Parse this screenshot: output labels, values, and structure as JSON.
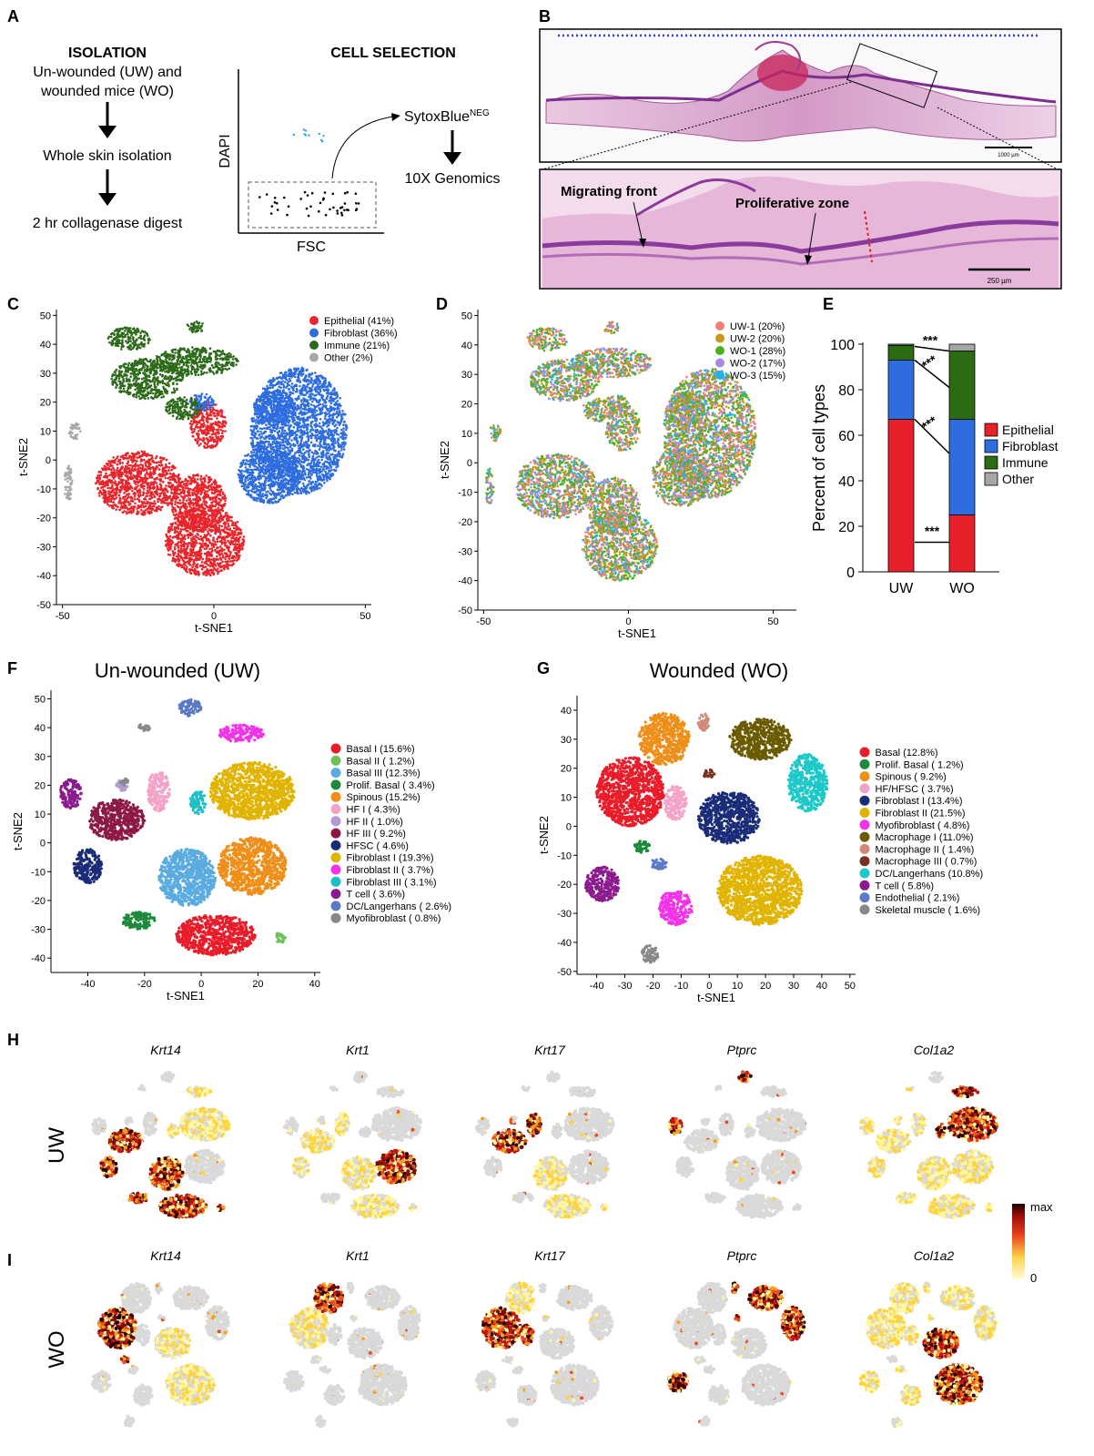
{
  "panelA": {
    "letter": "A",
    "isolation": {
      "heading": "ISOLATION",
      "step1_line1": "Un-wounded (UW) and",
      "step1_line2": "wounded mice (WO)",
      "step2": "Whole skin isolation",
      "step3": "2 hr collagenase digest"
    },
    "selection": {
      "heading": "CELL SELECTION",
      "y_axis": "DAPI",
      "x_axis": "FSC",
      "gate_label": "SytoxBlue",
      "gate_superscript": "NEG",
      "output": "10X Genomics"
    }
  },
  "panelB": {
    "letter": "B",
    "scale_top": "1000 µm",
    "scale_bottom": "250 µm",
    "label_migrating": "Migrating front",
    "label_proliferative": "Proliferative zone"
  },
  "chart_data": [
    {
      "panel": "C",
      "type": "scatter",
      "xlabel": "t-SNE1",
      "ylabel": "t-SNE2",
      "xlim": [
        -52,
        52
      ],
      "ylim": [
        -50,
        52
      ],
      "xticks": [
        -50,
        0,
        50
      ],
      "yticks": [
        50,
        40,
        30,
        20,
        10,
        0,
        -10,
        -20,
        -30,
        -40,
        -50
      ],
      "legend_position": "top-right",
      "series": [
        {
          "name": "Epithelial (41%)",
          "color": "#e8252b",
          "clusters": [
            [
              -25,
              -8,
              14,
              11
            ],
            [
              -3,
              -28,
              13,
              12
            ],
            [
              -2,
              12,
              6,
              8
            ],
            [
              -5,
              -15,
              9,
              10
            ]
          ]
        },
        {
          "name": "Fibroblast (36%)",
          "color": "#2e6ddf",
          "clusters": [
            [
              28,
              10,
              16,
              22
            ],
            [
              20,
              18,
              7,
              6
            ],
            [
              18,
              -5,
              10,
              10
            ],
            [
              -4,
              20,
              4,
              3
            ]
          ]
        },
        {
          "name": "Immune (21%)",
          "color": "#2d6a1a",
          "clusters": [
            [
              -22,
              28,
              12,
              7
            ],
            [
              -6,
              34,
              14,
              5
            ],
            [
              -28,
              42,
              7,
              4
            ],
            [
              -6,
              46,
              3,
              2
            ],
            [
              -10,
              18,
              6,
              4
            ]
          ]
        },
        {
          "name": "Other (2%)",
          "color": "#a7a7a7",
          "clusters": [
            [
              -46,
              10,
              2,
              3
            ],
            [
              -48,
              -8,
              1.5,
              6
            ]
          ]
        }
      ]
    },
    {
      "panel": "D",
      "type": "scatter",
      "xlabel": "t-SNE1",
      "ylabel": "t-SNE2",
      "xlim": [
        -52,
        58
      ],
      "ylim": [
        -50,
        52
      ],
      "xticks": [
        -50,
        0,
        50
      ],
      "yticks": [
        50,
        40,
        30,
        20,
        10,
        0,
        -10,
        -20,
        -30,
        -40,
        -50
      ],
      "legend_position": "top-right",
      "series": [
        {
          "name": "UW-1 (20%)",
          "color": "#f08078"
        },
        {
          "name": "UW-2 (20%)",
          "color": "#c49a16"
        },
        {
          "name": "WO-1 (28%)",
          "color": "#4eb01e"
        },
        {
          "name": "WO-2 (17%)",
          "color": "#a58ae8"
        },
        {
          "name": "WO-3 (15%)",
          "color": "#1eb4e0"
        }
      ]
    },
    {
      "panel": "E",
      "type": "bar",
      "stacked": true,
      "ylabel": "Percent of cell types",
      "ylim": [
        0,
        100
      ],
      "yticks": [
        0,
        20,
        40,
        60,
        80,
        100
      ],
      "categories": [
        "UW",
        "WO"
      ],
      "series": [
        {
          "name": "Epithelial",
          "color": "#e8202a",
          "values": [
            67,
            25
          ]
        },
        {
          "name": "Fibroblast",
          "color": "#2e6ddf",
          "values": [
            26,
            42
          ]
        },
        {
          "name": "Immune",
          "color": "#2a6b14",
          "values": [
            6.5,
            30
          ]
        },
        {
          "name": "Other",
          "color": "#a6a6a6",
          "values": [
            0.5,
            3
          ]
        }
      ],
      "significance": "***",
      "legend_position": "right"
    },
    {
      "panel": "F",
      "type": "scatter",
      "title": "Un-wounded (UW)",
      "xlabel": "t-SNE1",
      "ylabel": "t-SNE2",
      "xlim": [
        -53,
        42
      ],
      "ylim": [
        -45,
        53
      ],
      "xticks": [
        -40,
        -20,
        0,
        20,
        40
      ],
      "yticks": [
        50,
        40,
        30,
        20,
        10,
        0,
        -10,
        -20,
        -30,
        -40
      ],
      "legend_position": "right",
      "series": [
        {
          "name": "Basal I (15.6%)",
          "color": "#ea1c2a",
          "clusters": [
            [
              5,
              -32,
              14,
              7
            ]
          ]
        },
        {
          "name": "Basal II ( 1.2%)",
          "color": "#6ec05a",
          "clusters": [
            [
              28,
              -33,
              2,
              2
            ]
          ]
        },
        {
          "name": "Basal III (12.3%)",
          "color": "#5aabe0",
          "clusters": [
            [
              -5,
              -12,
              10,
              10
            ]
          ]
        },
        {
          "name": "Prolif. Basal ( 3.4%)",
          "color": "#1c8a3a",
          "clusters": [
            [
              -22,
              -27,
              6,
              3
            ]
          ]
        },
        {
          "name": "Spinous (15.2%)",
          "color": "#ee8f1a",
          "clusters": [
            [
              18,
              -8,
              12,
              10
            ]
          ]
        },
        {
          "name": "HF I ( 4.3%)",
          "color": "#f4a3c8",
          "clusters": [
            [
              -15,
              18,
              4,
              7
            ]
          ]
        },
        {
          "name": "HF II ( 1.0%)",
          "color": "#b49ad2",
          "clusters": [
            [
              -28,
              20,
              2,
              2
            ]
          ]
        },
        {
          "name": "HF III ( 9.2%)",
          "color": "#8c1846",
          "clusters": [
            [
              -30,
              8,
              10,
              7
            ]
          ]
        },
        {
          "name": "HFSC ( 4.6%)",
          "color": "#1a2c78",
          "clusters": [
            [
              -40,
              -8,
              5,
              6
            ]
          ]
        },
        {
          "name": "Fibroblast I (19.3%)",
          "color": "#e0b400",
          "clusters": [
            [
              18,
              18,
              15,
              10
            ]
          ]
        },
        {
          "name": "Fibroblast II ( 3.7%)",
          "color": "#f233e8",
          "clusters": [
            [
              14,
              38,
              8,
              3
            ]
          ]
        },
        {
          "name": "Fibroblast III ( 3.1%)",
          "color": "#1ec0c8",
          "clusters": [
            [
              -1,
              14,
              3,
              4
            ]
          ]
        },
        {
          "name": "T cell  ( 3.6%)",
          "color": "#8b1a8f",
          "clusters": [
            [
              -46,
              17,
              4,
              5
            ]
          ]
        },
        {
          "name": "DC/Langerhans ( 2.6%)",
          "color": "#5a7ac8",
          "clusters": [
            [
              -4,
              47,
              4,
              3
            ]
          ]
        },
        {
          "name": "Myofibroblast ( 0.8%)",
          "color": "#888888",
          "clusters": [
            [
              -20,
              40,
              2,
              1.5
            ],
            [
              -27,
              21,
              1.5,
              1.5
            ]
          ]
        }
      ]
    },
    {
      "panel": "G",
      "type": "scatter",
      "title": "Wounded (WO)",
      "xlabel": "t-SNE1",
      "ylabel": "t-SNE2",
      "xlim": [
        -47,
        52
      ],
      "ylim": [
        -51,
        45
      ],
      "xticks": [
        -40,
        -30,
        -20,
        -10,
        0,
        10,
        20,
        30,
        40,
        50
      ],
      "yticks": [
        40,
        30,
        20,
        10,
        0,
        -10,
        -20,
        -30,
        -40,
        -50
      ],
      "legend_position": "right",
      "series": [
        {
          "name": "Basal (12.8%)",
          "color": "#ea1c2a",
          "clusters": [
            [
              -28,
              12,
              12,
              12
            ]
          ]
        },
        {
          "name": "Prolif. Basal ( 1.2%)",
          "color": "#1c8a3a",
          "clusters": [
            [
              -24,
              -7,
              3,
              2
            ]
          ]
        },
        {
          "name": "Spinous ( 9.2%)",
          "color": "#ee8f1a",
          "clusters": [
            [
              -16,
              30,
              9,
              9
            ]
          ]
        },
        {
          "name": "HF/HFSC ( 3.7%)",
          "color": "#f4a3c8",
          "clusters": [
            [
              -12,
              8,
              4,
              6
            ]
          ]
        },
        {
          "name": "Fibroblast I (13.4%)",
          "color": "#1a2c78",
          "clusters": [
            [
              7,
              3,
              11,
              9
            ]
          ]
        },
        {
          "name": "Fibroblast II (21.5%)",
          "color": "#e0b400",
          "clusters": [
            [
              18,
              -22,
              15,
              12
            ]
          ]
        },
        {
          "name": "Myofibroblast ( 4.8%)",
          "color": "#f233e8",
          "clusters": [
            [
              -12,
              -28,
              6,
              6
            ]
          ]
        },
        {
          "name": "Macrophage I (11.0%)",
          "color": "#6a5a00",
          "clusters": [
            [
              18,
              30,
              11,
              7
            ]
          ]
        },
        {
          "name": "Macrophage II ( 1.4%)",
          "color": "#d08878",
          "clusters": [
            [
              -2,
              36,
              2,
              3
            ]
          ]
        },
        {
          "name": "Macrophage III ( 0.7%)",
          "color": "#7a3020",
          "clusters": [
            [
              0,
              18,
              2,
              1.5
            ]
          ]
        },
        {
          "name": "DC/Langerhans (10.8%)",
          "color": "#1ec8c8",
          "clusters": [
            [
              35,
              15,
              7,
              10
            ]
          ]
        },
        {
          "name": "T cell ( 5.8%)",
          "color": "#8b1a8f",
          "clusters": [
            [
              -38,
              -20,
              6,
              6
            ]
          ]
        },
        {
          "name": "Endothelial ( 2.1%)",
          "color": "#5a7ac8",
          "clusters": [
            [
              -18,
              -13,
              3,
              2
            ]
          ]
        },
        {
          "name": "Skeletal muscle ( 1.6%)",
          "color": "#888888",
          "clusters": [
            [
              -21,
              -44,
              3,
              3
            ]
          ]
        }
      ]
    }
  ],
  "panelH": {
    "letter": "H",
    "row_label": "UW"
  },
  "panelI": {
    "letter": "I",
    "row_label": "WO"
  },
  "expression": {
    "genes": [
      "Krt14",
      "Krt1",
      "Krt17",
      "Ptprc",
      "Col1a2"
    ],
    "colorbar_max": "max",
    "colorbar_min": "0"
  },
  "letters": {
    "C": "C",
    "D": "D",
    "E": "E",
    "F": "F",
    "G": "G"
  },
  "sig_marks": [
    "***",
    "***",
    "***",
    "***"
  ]
}
